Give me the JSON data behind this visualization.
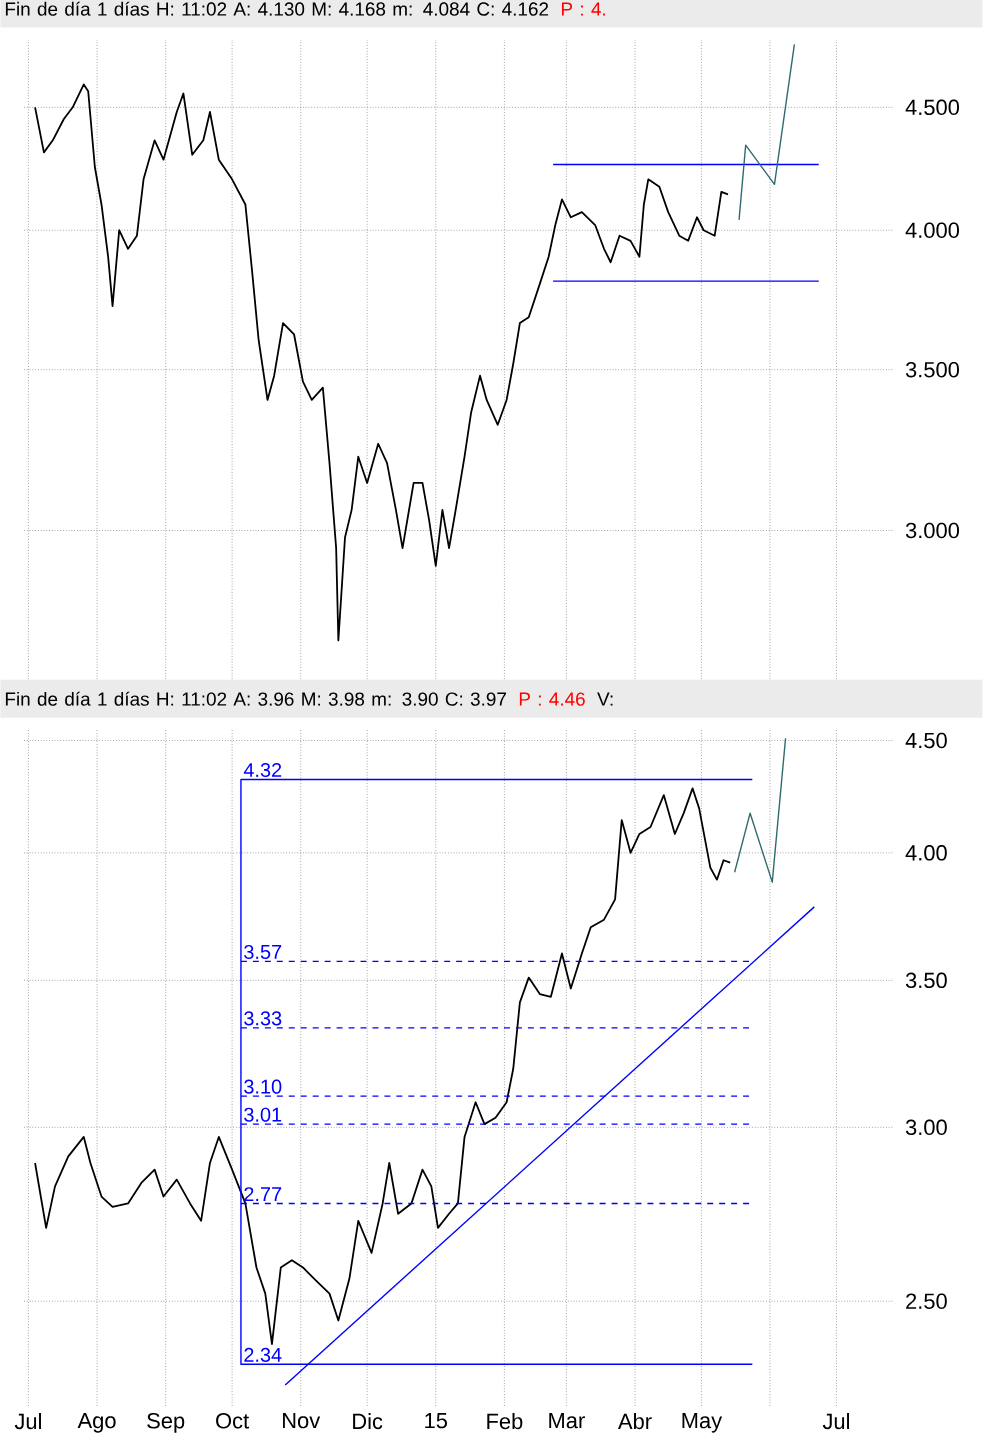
{
  "chart_data": [
    {
      "type": "line",
      "title": "Fin de día 1 días  H: 11:02  A: 4.130  M: 4.168  m: 4.084  C: 4.162",
      "annotations": [
        "P : 4."
      ],
      "log": "y",
      "grid": true,
      "tick_labels": "y",
      "xlim": [
        "2014-06-29",
        "2015-07-27"
      ],
      "ylim": [
        2.56,
        4.8
      ],
      "xticks": [
        {
          "value": "2014-07-01",
          "label": null
        },
        {
          "value": "2014-08-01",
          "label": null
        },
        {
          "value": "2014-09-01",
          "label": null
        },
        {
          "value": "2014-10-01",
          "label": null
        },
        {
          "value": "2014-11-01",
          "label": null
        },
        {
          "value": "2014-12-01",
          "label": null
        },
        {
          "value": "2015-01-01",
          "label": null
        },
        {
          "value": "2015-02-01",
          "label": null
        },
        {
          "value": "2015-03-01",
          "label": null
        },
        {
          "value": "2015-04-01",
          "label": null
        },
        {
          "value": "2015-05-01",
          "label": null
        },
        {
          "value": "2015-06-01",
          "label": null
        },
        {
          "value": "2015-07-01",
          "label": null
        }
      ],
      "yticks": [
        {
          "value": 3.0,
          "label": "3.000"
        },
        {
          "value": 3.5,
          "label": "3.500"
        },
        {
          "value": 4.0,
          "label": "4.000"
        },
        {
          "value": 4.5,
          "label": "4.500"
        }
      ],
      "series": [
        {
          "color": "#000000",
          "x": [
            "2014-07-04",
            "2014-07-08",
            "2014-07-12",
            "2014-07-17",
            "2014-07-21",
            "2014-07-26",
            "2014-07-28",
            "2014-07-31",
            "2014-08-03",
            "2014-08-06",
            "2014-08-08",
            "2014-08-11",
            "2014-08-15",
            "2014-08-19",
            "2014-08-22",
            "2014-08-27",
            "2014-08-31",
            "2014-09-06",
            "2014-09-09",
            "2014-09-13",
            "2014-09-18",
            "2014-09-21",
            "2014-09-25",
            "2014-10-01",
            "2014-10-07",
            "2014-10-10",
            "2014-10-13",
            "2014-10-17",
            "2014-10-20",
            "2014-10-24",
            "2014-10-29",
            "2014-11-02",
            "2014-11-06",
            "2014-11-11",
            "2014-11-14",
            "2014-11-17",
            "2014-11-18",
            "2014-11-21",
            "2014-11-24",
            "2014-11-27",
            "2014-12-01",
            "2014-12-06",
            "2014-12-10",
            "2014-12-14",
            "2014-12-17",
            "2014-12-22",
            "2014-12-26",
            "2014-12-29",
            "2015-01-01",
            "2015-01-04",
            "2015-01-07",
            "2015-01-10",
            "2015-01-14",
            "2015-01-17",
            "2015-01-21",
            "2015-01-24",
            "2015-01-29",
            "2015-02-02",
            "2015-02-05",
            "2015-02-08",
            "2015-02-12",
            "2015-02-17",
            "2015-02-21",
            "2015-02-24",
            "2015-02-27",
            "2015-03-03",
            "2015-03-08",
            "2015-03-14",
            "2015-03-18",
            "2015-03-21",
            "2015-03-25",
            "2015-03-30",
            "2015-04-03",
            "2015-04-05",
            "2015-04-07",
            "2015-04-12",
            "2015-04-16",
            "2015-04-21",
            "2015-04-25",
            "2015-04-29",
            "2015-05-02",
            "2015-05-07",
            "2015-05-10",
            "2015-05-13"
          ],
          "values": [
            4.5,
            4.31,
            4.36,
            4.45,
            4.5,
            4.6,
            4.57,
            4.25,
            4.1,
            3.9,
            3.72,
            4.0,
            3.93,
            3.98,
            4.2,
            4.36,
            4.28,
            4.48,
            4.56,
            4.3,
            4.36,
            4.48,
            4.28,
            4.2,
            4.1,
            3.85,
            3.6,
            3.4,
            3.48,
            3.66,
            3.62,
            3.46,
            3.4,
            3.44,
            3.2,
            2.95,
            2.7,
            2.98,
            3.06,
            3.22,
            3.14,
            3.26,
            3.2,
            3.06,
            2.95,
            3.14,
            3.14,
            3.03,
            2.9,
            3.06,
            2.95,
            3.06,
            3.22,
            3.36,
            3.48,
            3.4,
            3.32,
            3.4,
            3.52,
            3.66,
            3.68,
            3.8,
            3.9,
            4.02,
            4.12,
            4.05,
            4.07,
            4.02,
            3.93,
            3.88,
            3.98,
            3.96,
            3.9,
            4.1,
            4.2,
            4.17,
            4.07,
            3.98,
            3.96,
            4.05,
            4.0,
            3.98,
            4.15,
            4.14
          ]
        },
        {
          "color": "#0000ff",
          "x": [
            "2015-02-23",
            "2015-06-23"
          ],
          "values": [
            4.26,
            4.26
          ]
        },
        {
          "color": "#0000ff",
          "x": [
            "2015-02-23",
            "2015-06-23"
          ],
          "values": [
            3.81,
            3.81
          ]
        },
        {
          "color": "#2e6b70",
          "x": [
            "2015-05-18",
            "2015-05-21",
            "2015-06-03",
            "2015-06-12"
          ],
          "values": [
            4.04,
            4.34,
            4.18,
            4.78
          ]
        }
      ]
    },
    {
      "type": "line",
      "title": "Fin de día 1 días  H: 11:02  A: 3.96  M: 3.98  m: 3.90  C: 3.97",
      "annotations": [
        "P : 4.46",
        "V:",
        {
          "text": "4.32",
          "x": "2014-10-05",
          "y": 4.32
        },
        {
          "text": "3.57",
          "x": "2014-10-05",
          "y": 3.57
        },
        {
          "text": "3.33",
          "x": "2014-10-05",
          "y": 3.33
        },
        {
          "text": "3.10",
          "x": "2014-10-05",
          "y": 3.1
        },
        {
          "text": "3.01",
          "x": "2014-10-05",
          "y": 3.01
        },
        {
          "text": "2.77",
          "x": "2014-10-05",
          "y": 2.77
        },
        {
          "text": "2.34",
          "x": "2014-10-05",
          "y": 2.34
        }
      ],
      "log": "y",
      "grid": true,
      "xlim": [
        "2014-06-29",
        "2015-07-27"
      ],
      "ylim": [
        2.24,
        4.55
      ],
      "xticks": [
        {
          "value": "2014-07-01",
          "label": "Jul"
        },
        {
          "value": "2014-08-01",
          "label": "Ago"
        },
        {
          "value": "2014-09-01",
          "label": "Sep"
        },
        {
          "value": "2014-10-01",
          "label": "Oct"
        },
        {
          "value": "2014-11-01",
          "label": "Nov"
        },
        {
          "value": "2014-12-01",
          "label": "Dic"
        },
        {
          "value": "2015-01-01",
          "label": "15"
        },
        {
          "value": "2015-02-01",
          "label": "Feb"
        },
        {
          "value": "2015-03-01",
          "label": "Mar"
        },
        {
          "value": "2015-04-01",
          "label": "Abr"
        },
        {
          "value": "2015-05-01",
          "label": "May"
        },
        {
          "value": "2015-06-01",
          "label": null
        },
        {
          "value": "2015-07-01",
          "label": "Jul"
        }
      ],
      "yticks": [
        {
          "value": 2.5,
          "label": "2.50"
        },
        {
          "value": 3.0,
          "label": "3.00"
        },
        {
          "value": 3.5,
          "label": "3.50"
        },
        {
          "value": 4.0,
          "label": "4.00"
        },
        {
          "value": 4.5,
          "label": "4.50"
        }
      ],
      "series": [
        {
          "color": "#000000",
          "x": [
            "2014-07-04",
            "2014-07-09",
            "2014-07-13",
            "2014-07-19",
            "2014-07-26",
            "2014-07-29",
            "2014-08-03",
            "2014-08-08",
            "2014-08-15",
            "2014-08-21",
            "2014-08-27",
            "2014-08-31",
            "2014-09-06",
            "2014-09-12",
            "2014-09-17",
            "2014-09-21",
            "2014-09-25",
            "2014-10-01",
            "2014-10-07",
            "2014-10-12",
            "2014-10-16",
            "2014-10-19",
            "2014-10-23",
            "2014-10-28",
            "2014-11-02",
            "2014-11-07",
            "2014-11-14",
            "2014-11-18",
            "2014-11-23",
            "2014-11-27",
            "2014-12-03",
            "2014-12-08",
            "2014-12-11",
            "2014-12-15",
            "2014-12-21",
            "2014-12-26",
            "2014-12-30",
            "2015-01-02",
            "2015-01-07",
            "2015-01-11",
            "2015-01-14",
            "2015-01-19",
            "2015-01-23",
            "2015-01-28",
            "2015-02-02",
            "2015-02-05",
            "2015-02-08",
            "2015-02-12",
            "2015-02-17",
            "2015-02-22",
            "2015-02-27",
            "2015-03-03",
            "2015-03-08",
            "2015-03-12",
            "2015-03-18",
            "2015-03-23",
            "2015-03-26",
            "2015-03-30",
            "2015-04-03",
            "2015-04-08",
            "2015-04-14",
            "2015-04-19",
            "2015-04-23",
            "2015-04-27",
            "2015-04-30",
            "2015-05-05",
            "2015-05-08",
            "2015-05-11",
            "2015-05-14"
          ],
          "values": [
            2.89,
            2.7,
            2.82,
            2.91,
            2.97,
            2.89,
            2.79,
            2.76,
            2.77,
            2.83,
            2.87,
            2.79,
            2.84,
            2.77,
            2.72,
            2.89,
            2.97,
            2.87,
            2.77,
            2.59,
            2.52,
            2.39,
            2.59,
            2.61,
            2.59,
            2.56,
            2.52,
            2.45,
            2.56,
            2.72,
            2.63,
            2.77,
            2.89,
            2.74,
            2.77,
            2.87,
            2.82,
            2.7,
            2.74,
            2.77,
            2.97,
            3.08,
            3.01,
            3.03,
            3.08,
            3.19,
            3.42,
            3.51,
            3.45,
            3.44,
            3.6,
            3.47,
            3.6,
            3.7,
            3.73,
            3.81,
            4.14,
            4.0,
            4.08,
            4.11,
            4.25,
            4.08,
            4.17,
            4.28,
            4.19,
            3.94,
            3.89,
            3.97,
            3.96
          ]
        },
        {
          "color": "#0000ff",
          "x": [
            "2015-05-24",
            "2014-10-05",
            "2014-10-05",
            "2015-05-24"
          ],
          "values": [
            4.32,
            4.32,
            2.34,
            2.34
          ]
        },
        {
          "color": "#0000ff",
          "line_style": "dashed",
          "x": [
            "2014-10-05",
            "2015-05-24"
          ],
          "values": [
            3.57,
            3.57
          ]
        },
        {
          "color": "#0000ff",
          "line_style": "dashed",
          "x": [
            "2014-10-05",
            "2015-05-24"
          ],
          "values": [
            3.33,
            3.33
          ]
        },
        {
          "color": "#0000ff",
          "line_style": "dashed",
          "x": [
            "2014-10-05",
            "2015-05-24"
          ],
          "values": [
            3.1,
            3.1
          ]
        },
        {
          "color": "#0000ff",
          "line_style": "dashed",
          "x": [
            "2014-10-05",
            "2015-05-24"
          ],
          "values": [
            3.01,
            3.01
          ]
        },
        {
          "color": "#0000ff",
          "line_style": "dashed",
          "x": [
            "2014-10-05",
            "2015-05-24"
          ],
          "values": [
            2.77,
            2.77
          ]
        },
        {
          "color": "#0000ff",
          "x": [
            "2014-10-25",
            "2015-06-21"
          ],
          "values": [
            2.29,
            3.78
          ]
        },
        {
          "color": "#2e6b70",
          "x": [
            "2015-05-16",
            "2015-05-23",
            "2015-06-02",
            "2015-06-08"
          ],
          "values": [
            3.92,
            4.17,
            3.88,
            4.51
          ]
        }
      ]
    }
  ]
}
